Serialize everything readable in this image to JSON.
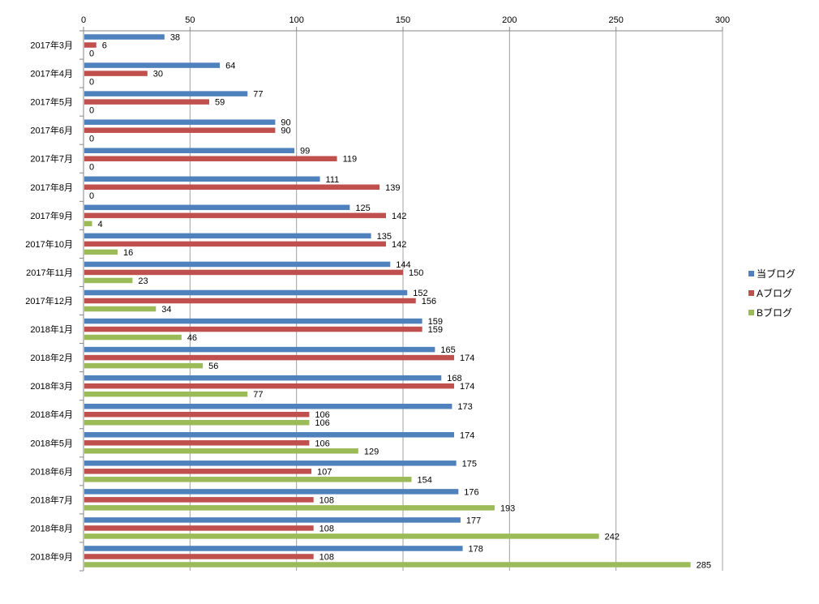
{
  "chart_data": {
    "type": "bar",
    "orientation": "horizontal",
    "categories": [
      "2017年3月",
      "2017年4月",
      "2017年5月",
      "2017年6月",
      "2017年7月",
      "2017年8月",
      "2017年9月",
      "2017年10月",
      "2017年11月",
      "2017年12月",
      "2018年1月",
      "2018年2月",
      "2018年3月",
      "2018年4月",
      "2018年5月",
      "2018年6月",
      "2018年7月",
      "2018年8月",
      "2018年9月"
    ],
    "series": [
      {
        "name": "当ブログ",
        "color": "#4f81bd",
        "values": [
          38,
          64,
          77,
          90,
          99,
          111,
          125,
          135,
          144,
          152,
          159,
          165,
          168,
          173,
          174,
          175,
          176,
          177,
          178
        ]
      },
      {
        "name": "Aブログ",
        "color": "#c0504d",
        "values": [
          6,
          30,
          59,
          90,
          119,
          139,
          142,
          142,
          150,
          156,
          159,
          174,
          174,
          106,
          106,
          107,
          108,
          108,
          108
        ]
      },
      {
        "name": "Bブログ",
        "color": "#9bbb59",
        "values": [
          0,
          0,
          0,
          0,
          0,
          0,
          4,
          16,
          23,
          34,
          46,
          56,
          77,
          106,
          129,
          154,
          193,
          242,
          285
        ]
      }
    ],
    "xlim": [
      0,
      300
    ],
    "ticks": [
      0,
      50,
      100,
      150,
      200,
      250,
      300
    ],
    "axis_position": "top",
    "grid": true,
    "data_labels": true,
    "legend": "right",
    "title": "",
    "xlabel": "",
    "ylabel": ""
  }
}
